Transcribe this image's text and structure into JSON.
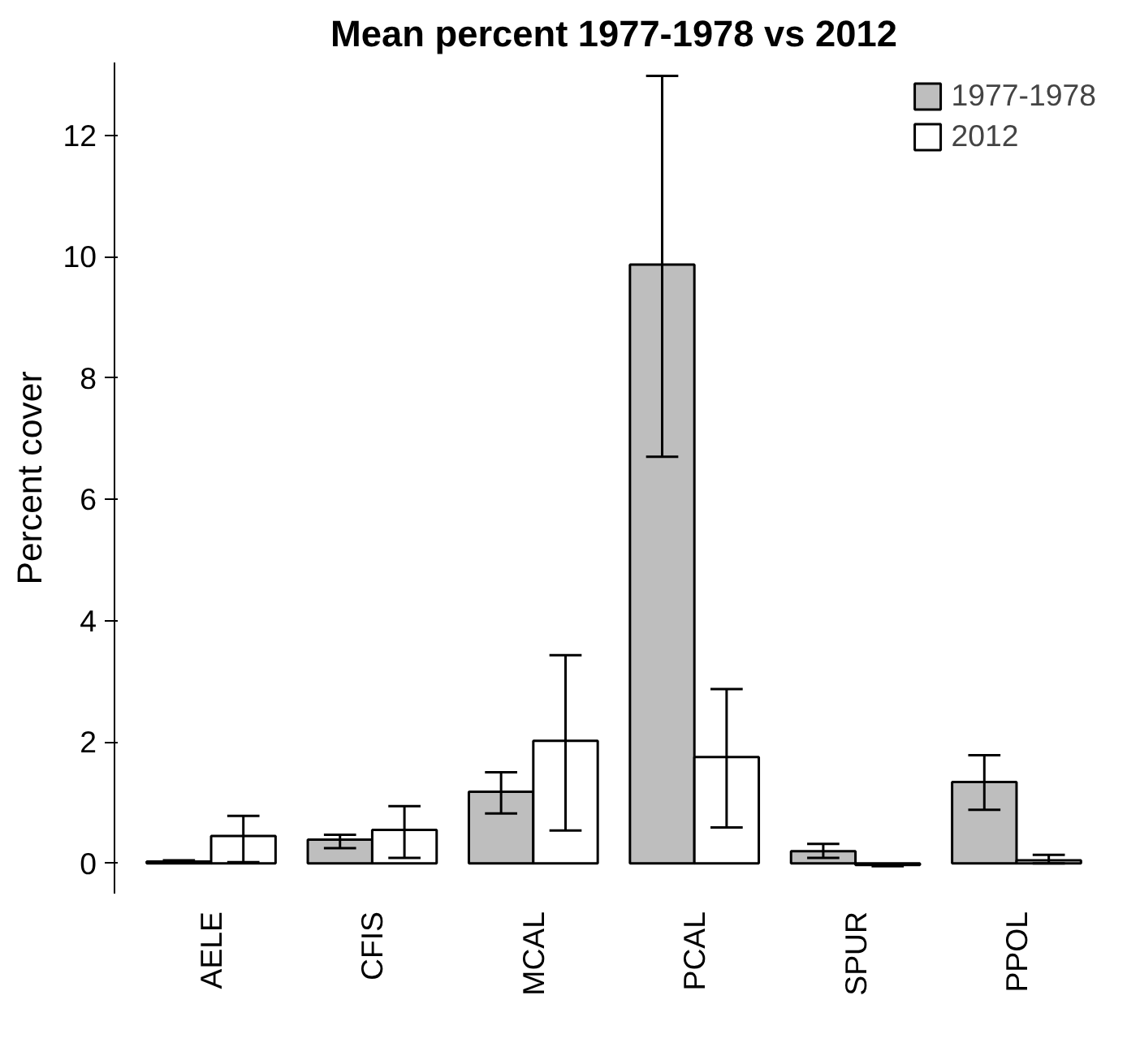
{
  "chart_data": {
    "type": "bar",
    "title": "Mean percent 1977-1978 vs 2012",
    "ylabel": "Percent cover",
    "categories": [
      "AELE",
      "CFIS",
      "MCAL",
      "PCAL",
      "SPUR",
      "PPOL"
    ],
    "series": [
      {
        "name": "1977-1978",
        "color": "#bebebe",
        "values": [
          0.03,
          0.39,
          1.18,
          9.87,
          0.2,
          1.34
        ],
        "errors": [
          0.02,
          [
            0.25,
            0.47
          ],
          [
            0.82,
            1.5
          ],
          [
            6.7,
            12.98
          ],
          [
            0.09,
            0.32
          ],
          [
            0.88,
            1.78
          ]
        ]
      },
      {
        "name": "2012",
        "color": "#ffffff",
        "values": [
          0.45,
          0.55,
          2.02,
          1.75,
          -0.03,
          0.05
        ],
        "errors": [
          [
            0.02,
            0.78
          ],
          [
            0.09,
            0.94
          ],
          [
            0.54,
            3.43
          ],
          [
            0.59,
            2.87
          ],
          0.02,
          [
            0.0,
            0.14
          ]
        ]
      }
    ],
    "ylim": [
      -0.5,
      13.2
    ],
    "yticks": [
      0,
      2,
      4,
      6,
      8,
      10,
      12
    ],
    "grid": false,
    "legend": "top right"
  }
}
